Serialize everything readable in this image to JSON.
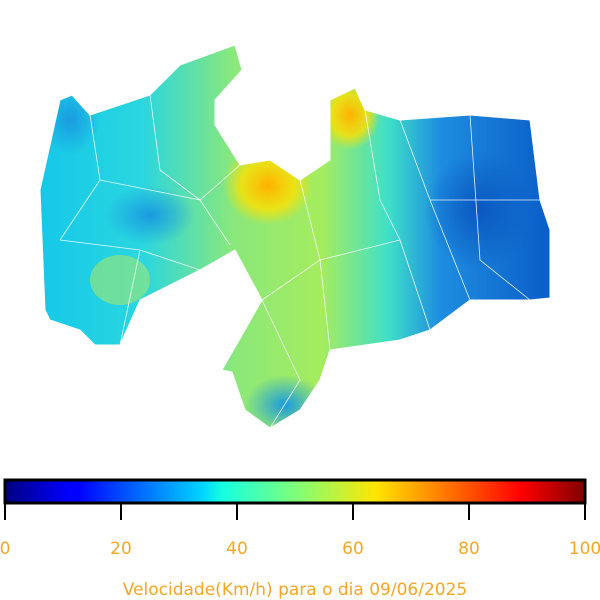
{
  "colorbar": {
    "label": "Velocidade(Km/h) para o dia 09/06/2025",
    "lim": [
      0,
      100
    ],
    "ticks": [
      0,
      20,
      40,
      60,
      80,
      100
    ]
  }
}
